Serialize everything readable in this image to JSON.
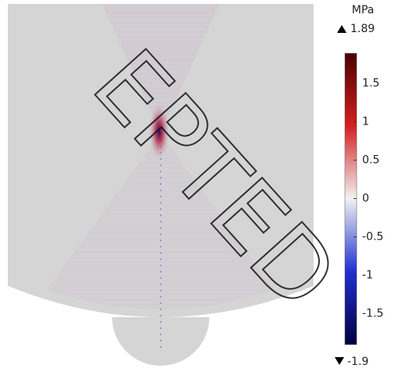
{
  "chart_data": {
    "type": "field",
    "unit": "MPa",
    "max_label": 1.89,
    "min_label": -1.9,
    "clim": [
      -1.9,
      1.89
    ],
    "cticks": [
      1.5,
      1,
      0.5,
      0,
      -0.5,
      -1,
      -1.5
    ],
    "colors": [
      "#4a0000",
      "#d42020",
      "#f2f2f2",
      "#2030d0",
      "#000040"
    ],
    "watermark": "EPTED"
  }
}
